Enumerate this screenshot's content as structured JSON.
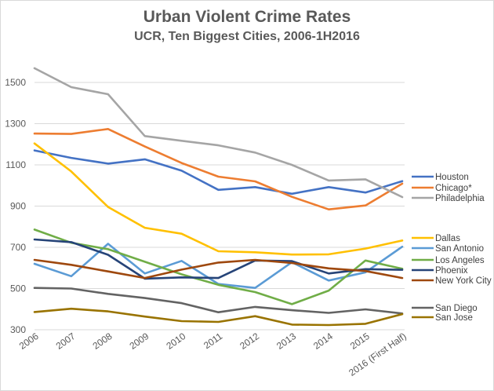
{
  "chart_data": {
    "type": "line",
    "title": "Urban Violent Crime Rates",
    "subtitle": "UCR, Ten Biggest Cities, 2006-1H2016",
    "xlabel": "",
    "ylabel": "",
    "ylim": [
      300,
      1600
    ],
    "yticks": [
      300,
      500,
      700,
      900,
      1100,
      1300,
      1500
    ],
    "ytick_labels": [
      "300",
      "500",
      "700",
      "900",
      "1100",
      "1300",
      "1500"
    ],
    "grid": true,
    "legend_position": "right",
    "categories": [
      "2006",
      "2007",
      "2008",
      "2009",
      "2010",
      "2011",
      "2012",
      "2013",
      "2014",
      "2015",
      "2016 (First Half)"
    ],
    "series": [
      {
        "name": "Houston",
        "color": "#4472C4",
        "values": [
          1170,
          1134,
          1106,
          1127,
          1072,
          979,
          992,
          960,
          992,
          966,
          1021
        ]
      },
      {
        "name": "Chicago*",
        "color": "#ED7D31",
        "values": [
          1252,
          1250,
          1274,
          1189,
          1109,
          1043,
          1020,
          945,
          884,
          903,
          1009
        ]
      },
      {
        "name": "Philadelphia",
        "color": "#A5A5A5",
        "values": [
          1569,
          1477,
          1443,
          1240,
          1217,
          1195,
          1160,
          1100,
          1024,
          1030,
          944
        ]
      },
      {
        "name": "Dallas",
        "color": "#FFC000",
        "values": [
          1204,
          1068,
          896,
          795,
          766,
          681,
          676,
          665,
          666,
          694,
          733
        ]
      },
      {
        "name": "San Antonio",
        "color": "#5B9BD5",
        "values": [
          620,
          560,
          717,
          573,
          634,
          522,
          503,
          628,
          539,
          579,
          703
        ]
      },
      {
        "name": "Los Angeles",
        "color": "#70AD47",
        "values": [
          786,
          722,
          691,
          630,
          569,
          518,
          483,
          424,
          490,
          636,
          596
        ]
      },
      {
        "name": "Phoenix",
        "color": "#264478",
        "values": [
          738,
          725,
          664,
          548,
          554,
          551,
          636,
          633,
          573,
          594,
          591
        ]
      },
      {
        "name": "New York City",
        "color": "#9E480E",
        "values": [
          639,
          615,
          583,
          551,
          592,
          626,
          639,
          624,
          598,
          585,
          551
        ]
      },
      {
        "name": "San Diego",
        "color": "#636363",
        "values": [
          503,
          500,
          474,
          454,
          429,
          385,
          411,
          395,
          382,
          399,
          379
        ]
      },
      {
        "name": "San Jose",
        "color": "#997300",
        "values": [
          386,
          402,
          389,
          364,
          342,
          338,
          366,
          325,
          323,
          329,
          376
        ]
      }
    ]
  }
}
